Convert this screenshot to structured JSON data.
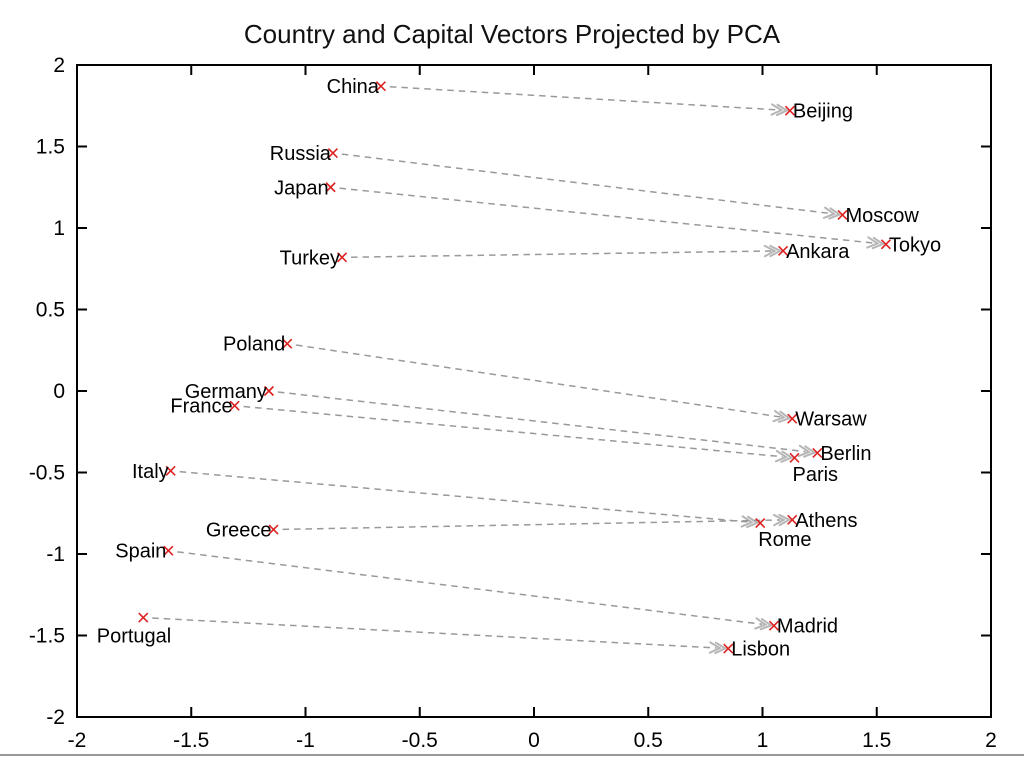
{
  "chart_data": {
    "type": "scatter",
    "title": "Country and Capital Vectors Projected by PCA",
    "xlabel": "",
    "ylabel": "",
    "xlim": [
      -2,
      2
    ],
    "ylim": [
      -2,
      2
    ],
    "xticks": [
      -2,
      -1.5,
      -1,
      -0.5,
      0,
      0.5,
      1,
      1.5,
      2
    ],
    "yticks": [
      -2,
      -1.5,
      -1,
      -0.5,
      0,
      0.5,
      1,
      1.5,
      2
    ],
    "grid": false,
    "legend": "none",
    "marker_symbol": "x",
    "colors": {
      "marker": "#dd2222",
      "arrow_line": "#999999",
      "arrow_head": "#b6b6b6",
      "text": "#000000",
      "axis": "#000000",
      "background": "#ffffff"
    },
    "pairs": [
      {
        "from": {
          "name": "China",
          "x": -0.67,
          "y": 1.87,
          "label_pos": "left"
        },
        "to": {
          "name": "Beijing",
          "x": 1.12,
          "y": 1.72,
          "label_pos": "right"
        }
      },
      {
        "from": {
          "name": "Russia",
          "x": -0.88,
          "y": 1.46,
          "label_pos": "left"
        },
        "to": {
          "name": "Moscow",
          "x": 1.35,
          "y": 1.08,
          "label_pos": "right"
        }
      },
      {
        "from": {
          "name": "Japan",
          "x": -0.89,
          "y": 1.25,
          "label_pos": "left"
        },
        "to": {
          "name": "Tokyo",
          "x": 1.54,
          "y": 0.9,
          "label_pos": "right"
        }
      },
      {
        "from": {
          "name": "Turkey",
          "x": -0.84,
          "y": 0.82,
          "label_pos": "left"
        },
        "to": {
          "name": "Ankara",
          "x": 1.09,
          "y": 0.86,
          "label_pos": "right"
        }
      },
      {
        "from": {
          "name": "Poland",
          "x": -1.08,
          "y": 0.29,
          "label_pos": "left"
        },
        "to": {
          "name": "Warsaw",
          "x": 1.13,
          "y": -0.17,
          "label_pos": "right"
        }
      },
      {
        "from": {
          "name": "Germany",
          "x": -1.16,
          "y": 0.0,
          "label_pos": "left"
        },
        "to": {
          "name": "Berlin",
          "x": 1.24,
          "y": -0.38,
          "label_pos": "right"
        }
      },
      {
        "from": {
          "name": "France",
          "x": -1.31,
          "y": -0.09,
          "label_pos": "left"
        },
        "to": {
          "name": "Paris",
          "x": 1.14,
          "y": -0.41,
          "label_pos": "below-right"
        }
      },
      {
        "from": {
          "name": "Italy",
          "x": -1.59,
          "y": -0.49,
          "label_pos": "left"
        },
        "to": {
          "name": "Rome",
          "x": 0.99,
          "y": -0.81,
          "label_pos": "below-right"
        }
      },
      {
        "from": {
          "name": "Greece",
          "x": -1.14,
          "y": -0.85,
          "label_pos": "left"
        },
        "to": {
          "name": "Athens",
          "x": 1.13,
          "y": -0.79,
          "label_pos": "right"
        }
      },
      {
        "from": {
          "name": "Spain",
          "x": -1.6,
          "y": -0.98,
          "label_pos": "left"
        },
        "to": {
          "name": "Madrid",
          "x": 1.05,
          "y": -1.44,
          "label_pos": "right"
        }
      },
      {
        "from": {
          "name": "Portugal",
          "x": -1.71,
          "y": -1.39,
          "label_pos": "below-left"
        },
        "to": {
          "name": "Lisbon",
          "x": 0.85,
          "y": -1.58,
          "label_pos": "right"
        }
      }
    ]
  }
}
